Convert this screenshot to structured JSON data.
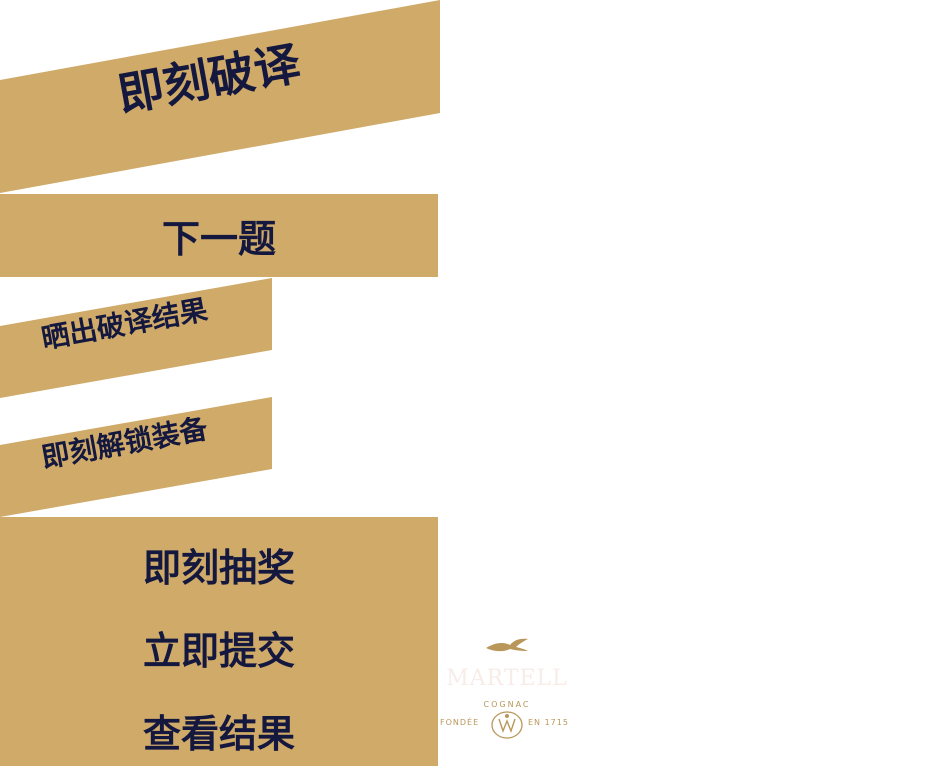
{
  "buttons": {
    "decode_now": "即刻破译",
    "next_question": "下一题",
    "share_result": "晒出破译结果",
    "unlock_gear": "即刻解锁装备",
    "draw_now": "即刻抽奖",
    "submit_now": "立即提交",
    "view_result": "查看结果"
  },
  "logo": {
    "brand": "MARTELL",
    "sub": "COGNAC",
    "founded_left": "FONDÉE",
    "founded_right": "EN 1715",
    "icon": "swallow-icon"
  },
  "colors": {
    "gold": "#cfaa68",
    "navy": "#14183f",
    "logo_gold": "#b9975a"
  }
}
